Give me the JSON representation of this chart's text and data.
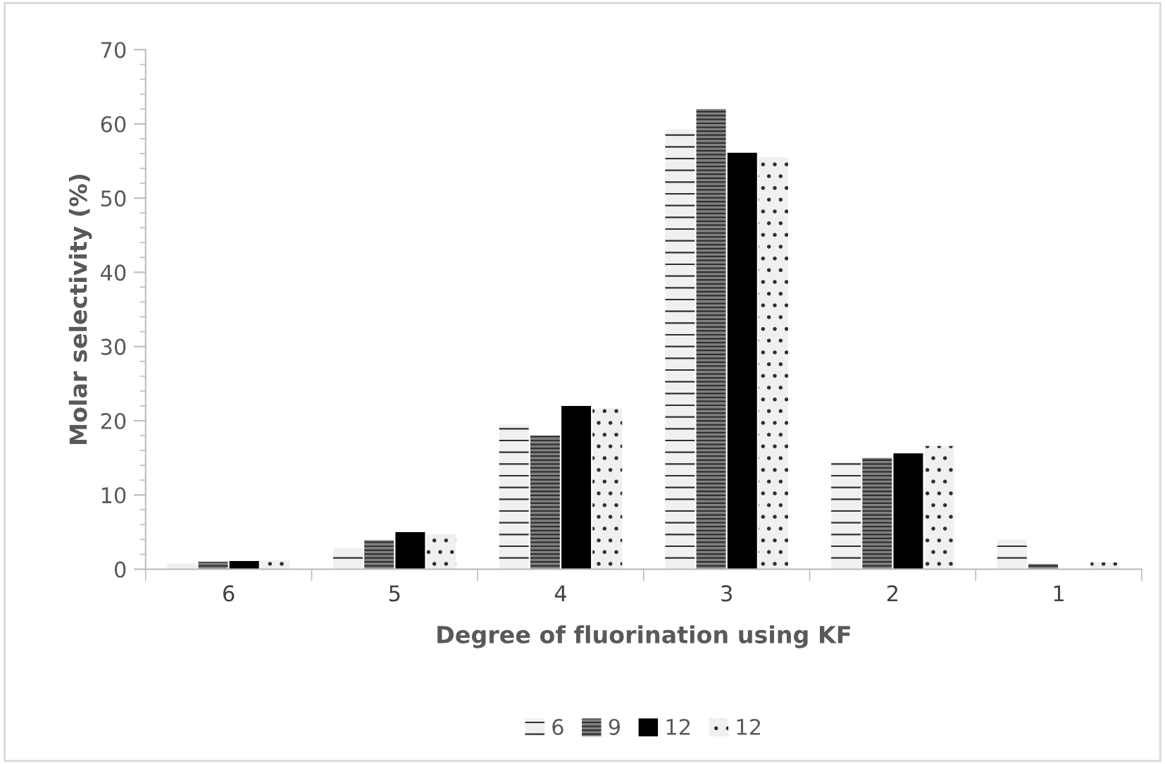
{
  "chart_data": {
    "type": "bar",
    "xlabel": "Degree of fluorination using KF",
    "ylabel": "Molar selectivity (%)",
    "categories": [
      "6",
      "5",
      "4",
      "3",
      "2",
      "1"
    ],
    "series": [
      {
        "name": "6",
        "color": "#f0f0f0",
        "values": [
          0.8,
          2.8,
          19.5,
          59.3,
          14.4,
          4.0
        ]
      },
      {
        "name": "9",
        "color": "#808080",
        "values": [
          1.0,
          3.9,
          18.0,
          62.0,
          15.0,
          0.7
        ]
      },
      {
        "name": "12",
        "color": "#000000",
        "values": [
          1.1,
          5.0,
          22.0,
          56.1,
          15.6,
          0
        ]
      },
      {
        "name": "12",
        "color": "#f0f0f0",
        "values": [
          1.2,
          4.7,
          21.7,
          55.5,
          16.6,
          0.9
        ]
      }
    ],
    "ylim": [
      0,
      70
    ],
    "yticks": [
      0,
      10,
      20,
      30,
      40,
      50,
      60,
      70
    ],
    "grid": false,
    "legend": "bottom"
  }
}
